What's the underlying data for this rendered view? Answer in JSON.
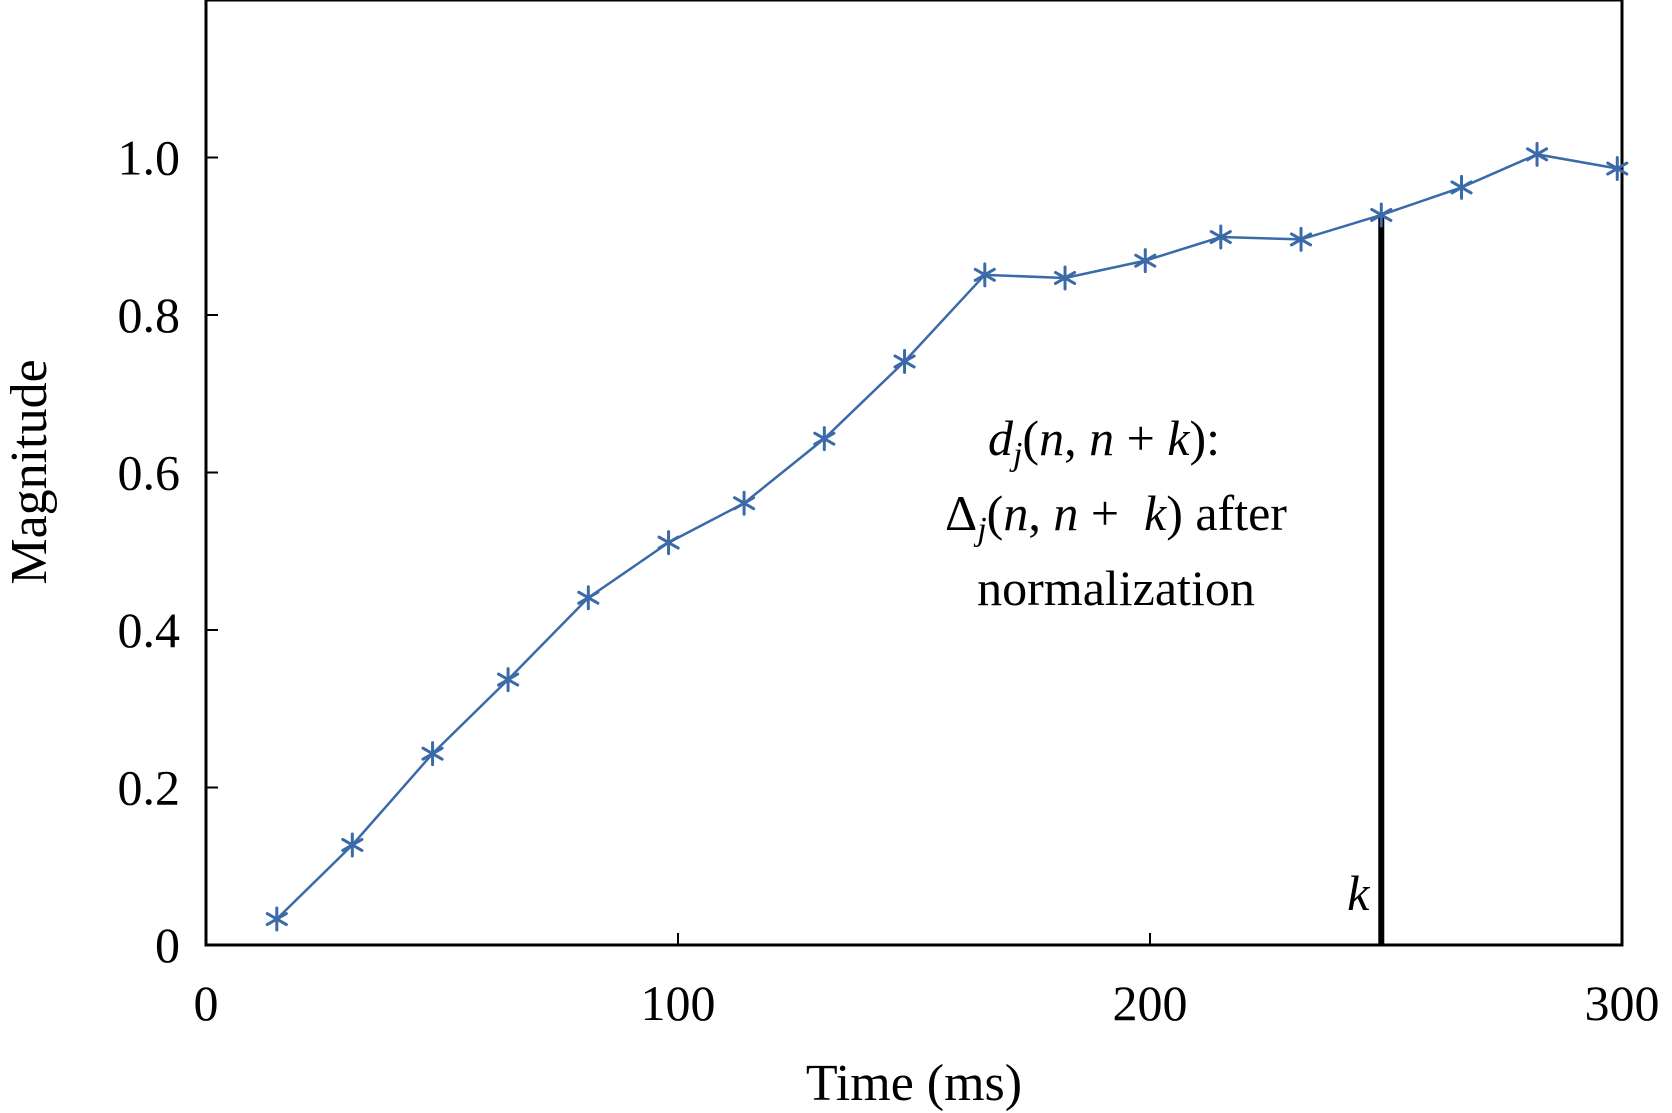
{
  "chart_data": {
    "type": "line",
    "title": "",
    "xlabel": "Time (ms)",
    "ylabel": "Magnitude",
    "xlim": [
      0,
      300
    ],
    "ylim": [
      0,
      1.2
    ],
    "x_ticks": [
      0,
      100,
      200,
      300
    ],
    "x_tick_labels": [
      "0",
      "100",
      "200",
      "300"
    ],
    "y_ticks": [
      0,
      0.2,
      0.4,
      0.6,
      0.8,
      1.0
    ],
    "y_tick_labels": [
      "0",
      "0.2",
      "0.4",
      "0.6",
      "0.8",
      "1.0"
    ],
    "grid": false,
    "series": [
      {
        "name": "d_j(n, n + k)",
        "color": "#3a6aa8",
        "marker": "asterisk",
        "x": [
          15,
          31,
          48,
          64,
          81,
          98,
          114,
          131,
          148,
          165,
          182,
          199,
          215,
          232,
          249,
          266,
          282,
          299
        ],
        "y": [
          0.033,
          0.127,
          0.243,
          0.337,
          0.441,
          0.511,
          0.561,
          0.643,
          0.741,
          0.851,
          0.847,
          0.869,
          0.899,
          0.896,
          0.927,
          0.962,
          1.004,
          0.986
        ]
      }
    ],
    "marker_line": {
      "x": 249,
      "y_from": 0,
      "y_to": 0.927,
      "color": "#000000",
      "label": "k"
    },
    "annotation": {
      "line1": [
        "d",
        "j",
        "(",
        "n",
        ", ",
        "n",
        " + ",
        "k",
        "):"
      ],
      "line2": [
        "Δ",
        "j",
        "(",
        "n",
        ", ",
        "n",
        " +  ",
        "k",
        ") after"
      ],
      "line3": "normalization"
    }
  }
}
